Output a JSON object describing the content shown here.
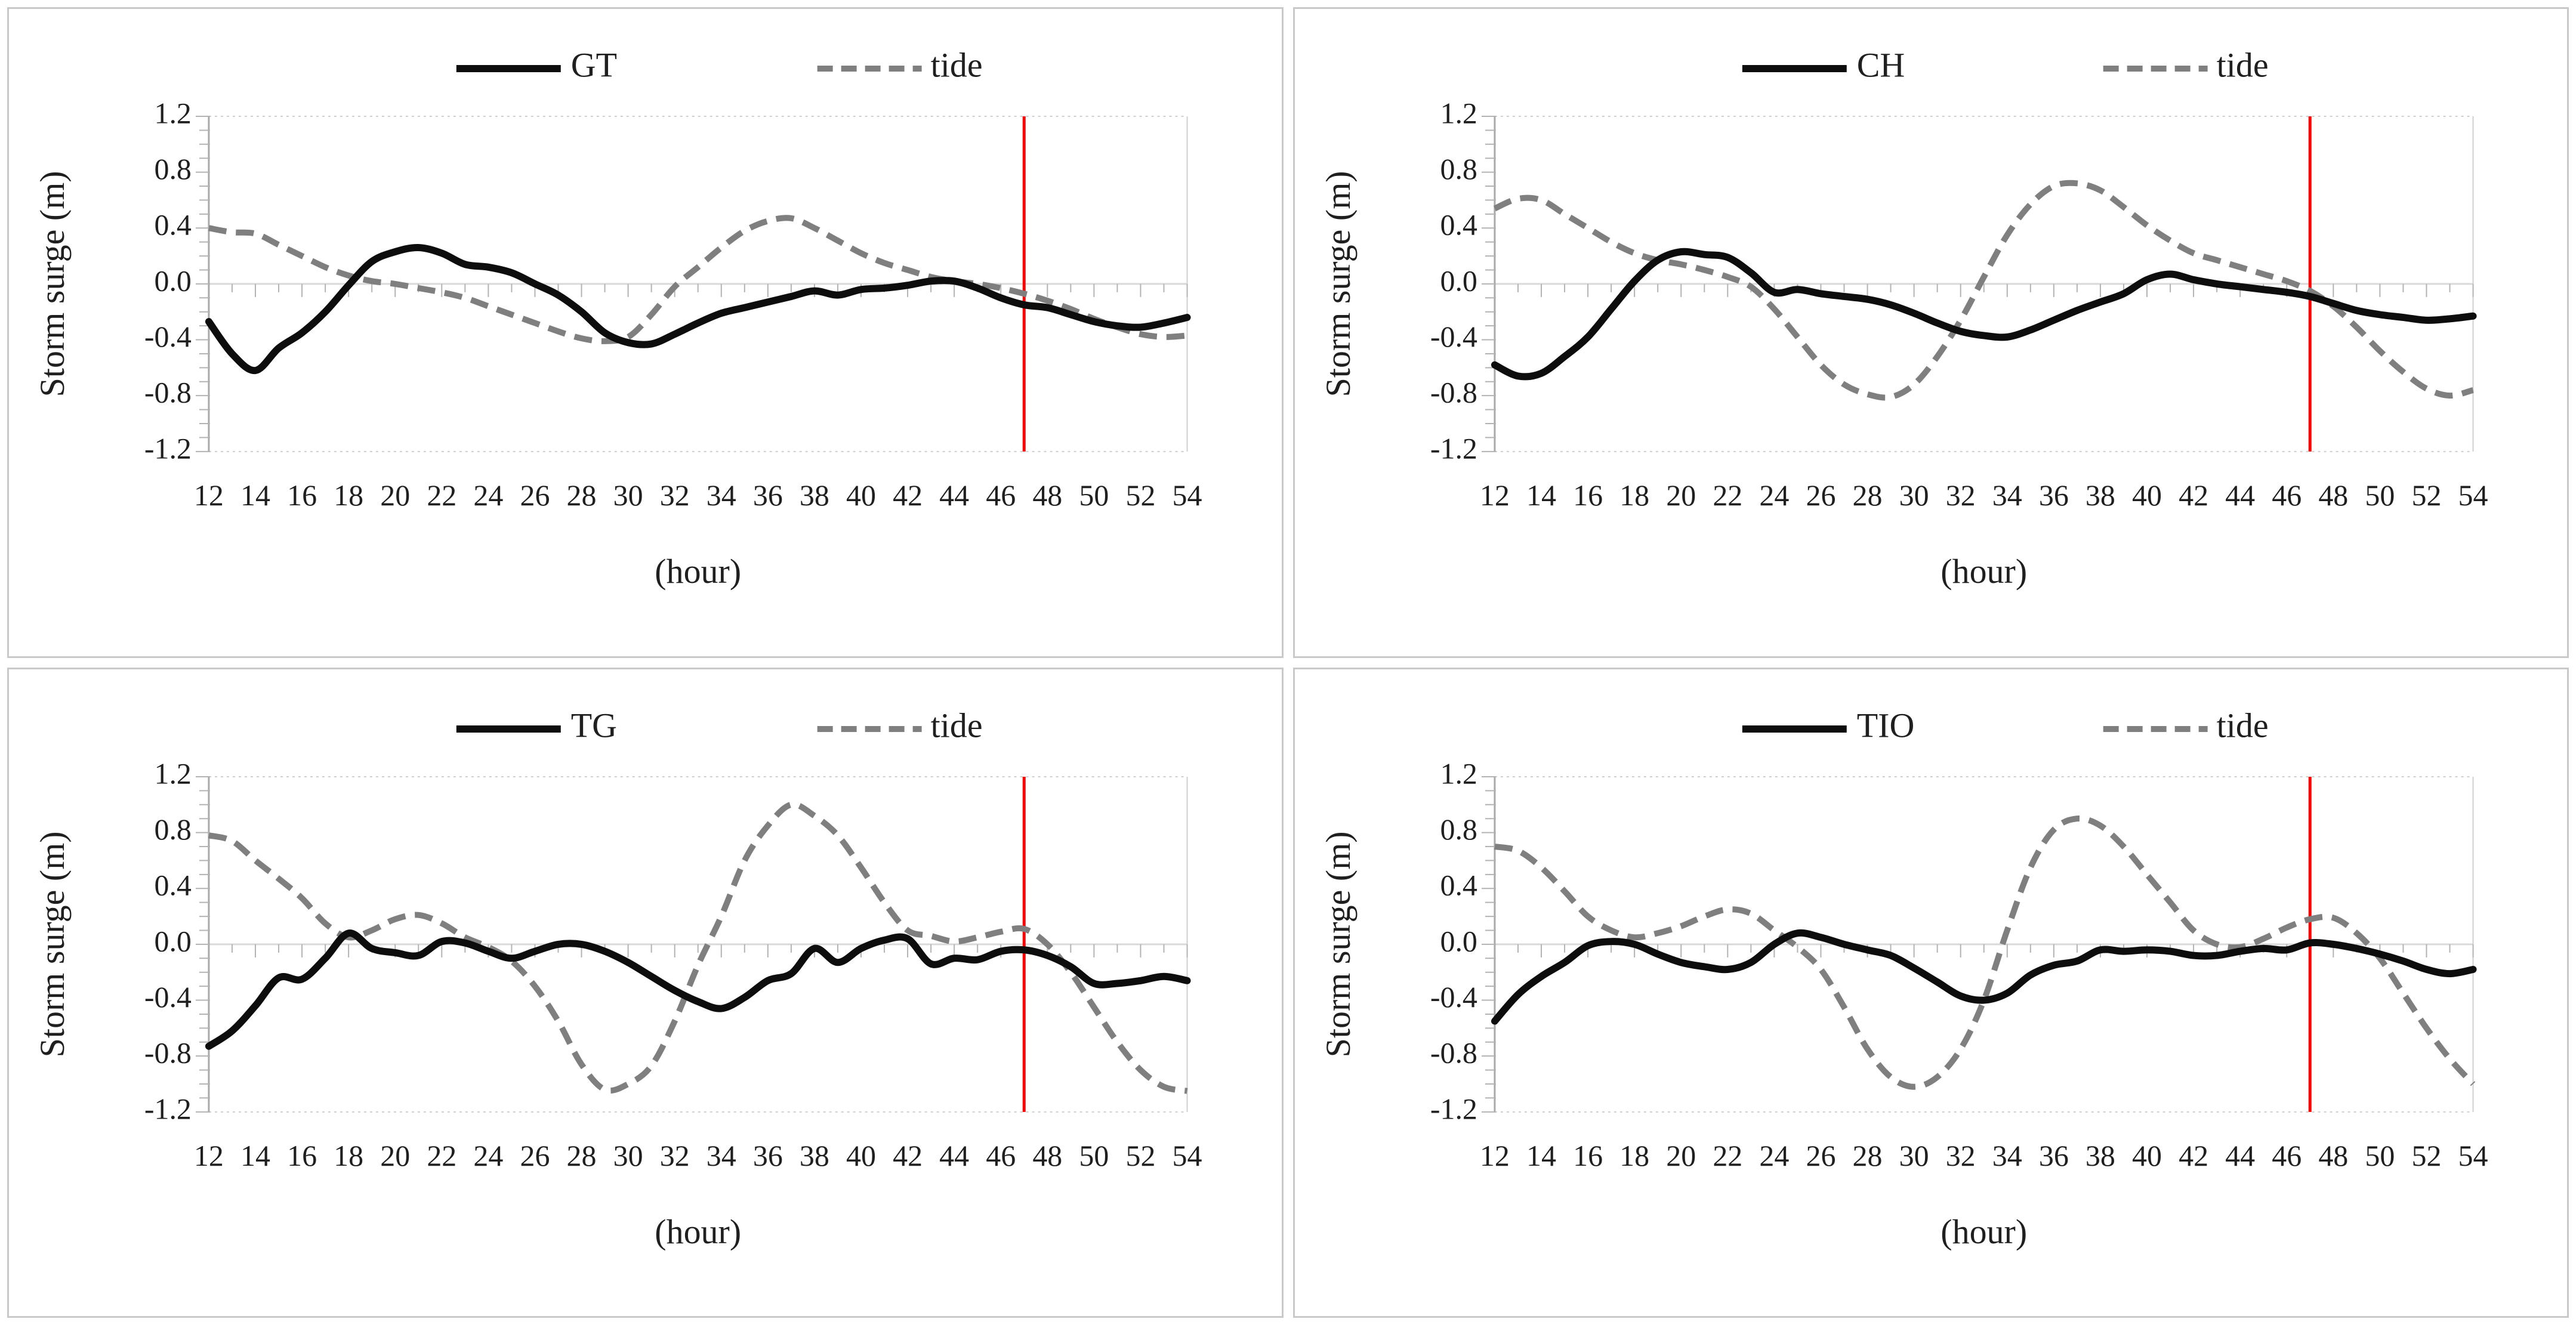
{
  "colors": {
    "surge_line": "#0d0d0d",
    "tide_line": "#7f7f7f",
    "marker_line": "#ff0000",
    "zero_gridline": "#d9d9d9",
    "plot_border": "#cfcfcf",
    "axis_line": "#a9a9a9",
    "tick": "#b3b3b3",
    "text": "#1f1f1f",
    "panel_border": "#c9c9c9"
  },
  "axes": {
    "ylabel": "Storm surge (m)",
    "xlabel": "(hour)",
    "y_tick_labels": [
      "1.2",
      "0.8",
      "0.4",
      "0.0",
      "-0.4",
      "-0.8",
      "-1.2"
    ],
    "x_tick_labels": [
      "12",
      "14",
      "16",
      "18",
      "20",
      "22",
      "24",
      "26",
      "28",
      "30",
      "32",
      "34",
      "36",
      "38",
      "40",
      "42",
      "44",
      "46",
      "48",
      "50",
      "52",
      "54"
    ],
    "ylim": [
      -1.2,
      1.2
    ],
    "xlim": [
      12,
      54
    ],
    "y_minor_step": 0.1,
    "x_minor_step": 1
  },
  "legend": {
    "tide_label": "tide"
  },
  "marker": {
    "hour": 47
  },
  "chart_data": [
    {
      "type": "line",
      "panel": "top-left",
      "legend": [
        "GT",
        "tide"
      ],
      "xlabel": "(hour)",
      "ylabel": "Storm surge (m)",
      "ylim": [
        -1.2,
        1.2
      ],
      "grid": "zero-line only",
      "legend_position": "top-center",
      "marker_line_x": 47,
      "x": [
        12,
        13,
        14,
        15,
        16,
        17,
        18,
        19,
        20,
        21,
        22,
        23,
        24,
        25,
        26,
        27,
        28,
        29,
        30,
        31,
        32,
        33,
        34,
        35,
        36,
        37,
        38,
        39,
        40,
        41,
        42,
        43,
        44,
        45,
        46,
        47,
        48,
        49,
        50,
        51,
        52,
        53,
        54
      ],
      "series": [
        {
          "name": "GT",
          "style": "solid",
          "values": [
            -0.27,
            -0.5,
            -0.62,
            -0.46,
            -0.35,
            -0.2,
            -0.01,
            0.16,
            0.23,
            0.26,
            0.22,
            0.14,
            0.12,
            0.08,
            0.0,
            -0.08,
            -0.2,
            -0.35,
            -0.42,
            -0.43,
            -0.36,
            -0.28,
            -0.21,
            -0.17,
            -0.13,
            -0.09,
            -0.05,
            -0.08,
            -0.04,
            -0.03,
            -0.01,
            0.02,
            0.02,
            -0.03,
            -0.1,
            -0.15,
            -0.17,
            -0.22,
            -0.27,
            -0.3,
            -0.31,
            -0.28,
            -0.24
          ]
        },
        {
          "name": "tide",
          "style": "dashed",
          "values": [
            0.4,
            0.37,
            0.36,
            0.28,
            0.2,
            0.12,
            0.06,
            0.02,
            0.0,
            -0.03,
            -0.06,
            -0.1,
            -0.16,
            -0.22,
            -0.28,
            -0.34,
            -0.39,
            -0.41,
            -0.38,
            -0.22,
            -0.02,
            0.12,
            0.26,
            0.38,
            0.45,
            0.47,
            0.4,
            0.31,
            0.22,
            0.15,
            0.1,
            0.05,
            0.02,
            0.0,
            -0.03,
            -0.07,
            -0.12,
            -0.18,
            -0.25,
            -0.31,
            -0.36,
            -0.38,
            -0.37
          ]
        }
      ]
    },
    {
      "type": "line",
      "panel": "top-right",
      "legend": [
        "CH",
        "tide"
      ],
      "xlabel": "(hour)",
      "ylabel": "Storm surge (m)",
      "ylim": [
        -1.2,
        1.2
      ],
      "grid": "zero-line only",
      "legend_position": "top-center",
      "marker_line_x": 47,
      "x": [
        12,
        13,
        14,
        15,
        16,
        17,
        18,
        19,
        20,
        21,
        22,
        23,
        24,
        25,
        26,
        27,
        28,
        29,
        30,
        31,
        32,
        33,
        34,
        35,
        36,
        37,
        38,
        39,
        40,
        41,
        42,
        43,
        44,
        45,
        46,
        47,
        48,
        49,
        50,
        51,
        52,
        53,
        54
      ],
      "series": [
        {
          "name": "CH",
          "style": "solid",
          "values": [
            -0.58,
            -0.66,
            -0.64,
            -0.52,
            -0.38,
            -0.18,
            0.02,
            0.17,
            0.23,
            0.21,
            0.19,
            0.08,
            -0.06,
            -0.04,
            -0.07,
            -0.09,
            -0.11,
            -0.15,
            -0.21,
            -0.28,
            -0.34,
            -0.37,
            -0.38,
            -0.33,
            -0.26,
            -0.19,
            -0.13,
            -0.07,
            0.03,
            0.07,
            0.03,
            0.0,
            -0.02,
            -0.04,
            -0.06,
            -0.09,
            -0.14,
            -0.19,
            -0.22,
            -0.24,
            -0.26,
            -0.25,
            -0.23
          ]
        },
        {
          "name": "tide",
          "style": "dashed",
          "values": [
            0.54,
            0.61,
            0.6,
            0.5,
            0.4,
            0.3,
            0.22,
            0.17,
            0.14,
            0.1,
            0.05,
            -0.02,
            -0.18,
            -0.38,
            -0.58,
            -0.72,
            -0.79,
            -0.81,
            -0.72,
            -0.52,
            -0.26,
            0.05,
            0.35,
            0.57,
            0.7,
            0.72,
            0.67,
            0.55,
            0.42,
            0.31,
            0.22,
            0.17,
            0.12,
            0.07,
            0.02,
            -0.05,
            -0.16,
            -0.31,
            -0.48,
            -0.63,
            -0.75,
            -0.8,
            -0.76
          ]
        }
      ]
    },
    {
      "type": "line",
      "panel": "bottom-left",
      "legend": [
        "TG",
        "tide"
      ],
      "xlabel": "(hour)",
      "ylabel": "Storm surge (m)",
      "ylim": [
        -1.2,
        1.2
      ],
      "grid": "zero-line only",
      "legend_position": "top-center",
      "marker_line_x": 47,
      "x": [
        12,
        13,
        14,
        15,
        16,
        17,
        18,
        19,
        20,
        21,
        22,
        23,
        24,
        25,
        26,
        27,
        28,
        29,
        30,
        31,
        32,
        33,
        34,
        35,
        36,
        37,
        38,
        39,
        40,
        41,
        42,
        43,
        44,
        45,
        46,
        47,
        48,
        49,
        50,
        51,
        52,
        53,
        54
      ],
      "series": [
        {
          "name": "TG",
          "style": "solid",
          "values": [
            -0.73,
            -0.62,
            -0.44,
            -0.24,
            -0.25,
            -0.1,
            0.08,
            -0.03,
            -0.06,
            -0.08,
            0.02,
            0.01,
            -0.05,
            -0.1,
            -0.05,
            0.0,
            0.0,
            -0.05,
            -0.13,
            -0.23,
            -0.33,
            -0.41,
            -0.46,
            -0.38,
            -0.26,
            -0.21,
            -0.03,
            -0.13,
            -0.03,
            0.03,
            0.04,
            -0.14,
            -0.1,
            -0.11,
            -0.05,
            -0.04,
            -0.08,
            -0.16,
            -0.28,
            -0.28,
            -0.26,
            -0.23,
            -0.26
          ]
        },
        {
          "name": "tide",
          "style": "dashed",
          "values": [
            0.78,
            0.74,
            0.6,
            0.47,
            0.33,
            0.15,
            0.05,
            0.1,
            0.18,
            0.21,
            0.15,
            0.05,
            -0.02,
            -0.12,
            -0.3,
            -0.55,
            -0.86,
            -1.04,
            -1.0,
            -0.87,
            -0.55,
            -0.15,
            0.2,
            0.6,
            0.85,
            1.0,
            0.92,
            0.78,
            0.55,
            0.3,
            0.1,
            0.06,
            0.02,
            0.05,
            0.09,
            0.11,
            0.0,
            -0.2,
            -0.45,
            -0.7,
            -0.9,
            -1.02,
            -1.05
          ]
        }
      ]
    },
    {
      "type": "line",
      "panel": "bottom-right",
      "legend": [
        "TIO",
        "tide"
      ],
      "xlabel": "(hour)",
      "ylabel": "Storm surge (m)",
      "ylim": [
        -1.2,
        1.2
      ],
      "grid": "zero-line only",
      "legend_position": "top-center",
      "marker_line_x": 47,
      "x": [
        12,
        13,
        14,
        15,
        16,
        17,
        18,
        19,
        20,
        21,
        22,
        23,
        24,
        25,
        26,
        27,
        28,
        29,
        30,
        31,
        32,
        33,
        34,
        35,
        36,
        37,
        38,
        39,
        40,
        41,
        42,
        43,
        44,
        45,
        46,
        47,
        48,
        49,
        50,
        51,
        52,
        53,
        54
      ],
      "series": [
        {
          "name": "TIO",
          "style": "solid",
          "values": [
            -0.55,
            -0.36,
            -0.23,
            -0.13,
            -0.01,
            0.02,
            0.0,
            -0.07,
            -0.13,
            -0.16,
            -0.18,
            -0.13,
            0.0,
            0.08,
            0.05,
            0.0,
            -0.04,
            -0.08,
            -0.17,
            -0.27,
            -0.37,
            -0.4,
            -0.35,
            -0.22,
            -0.15,
            -0.12,
            -0.04,
            -0.05,
            -0.04,
            -0.05,
            -0.08,
            -0.08,
            -0.05,
            -0.03,
            -0.04,
            0.01,
            0.0,
            -0.03,
            -0.07,
            -0.12,
            -0.18,
            -0.21,
            -0.18
          ]
        },
        {
          "name": "tide",
          "style": "dashed",
          "values": [
            0.7,
            0.67,
            0.55,
            0.38,
            0.2,
            0.1,
            0.05,
            0.08,
            0.13,
            0.2,
            0.25,
            0.22,
            0.1,
            -0.02,
            -0.18,
            -0.45,
            -0.75,
            -0.95,
            -1.02,
            -0.95,
            -0.75,
            -0.4,
            0.1,
            0.55,
            0.82,
            0.9,
            0.85,
            0.7,
            0.5,
            0.3,
            0.1,
            0.0,
            -0.02,
            0.04,
            0.12,
            0.18,
            0.19,
            0.08,
            -0.1,
            -0.35,
            -0.6,
            -0.82,
            -1.0
          ]
        }
      ]
    }
  ]
}
